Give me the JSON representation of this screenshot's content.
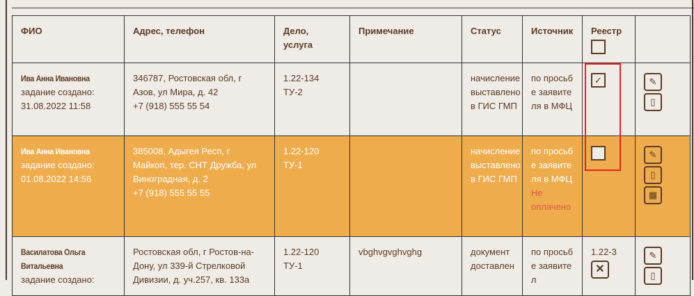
{
  "headers": {
    "fio": "ФИО",
    "address": "Адрес, телефон",
    "case": "Дело, услуга",
    "note": "Примечание",
    "status": "Статус",
    "source": "Источник",
    "registry": "Реестр"
  },
  "rows": [
    {
      "name": "Ива Анна Ивановна",
      "created": "задание создано: 31.08.2022 11:58",
      "address": "346787, Ростовская обл, г Азов, ул Мира, д. 42",
      "phone": "+7 (918) 555 55 54",
      "case": "1.22-134",
      "service": "ТУ-2",
      "note": "",
      "status": "начисление выставлено в ГИС ГМП",
      "source": "по просьбе заявителя в МФЦ",
      "registry_checked": true
    },
    {
      "name": "Ива Анна Ивановна",
      "created": "задание создано: 01.08.2022 14:56",
      "address": "385008, Адыгея Респ, г Майкоп, тер. СНТ Дружба, ул Виноградная, д. 2",
      "phone": "+7 (918) 555 55 55",
      "case": "1.22-120",
      "service": "ТУ-1",
      "note": "",
      "status": "начисление выставлено в ГИС ГМП",
      "source": "по просьбе заявителя в МФЦ",
      "source_warning": "Не оплачено",
      "registry_checked": false
    },
    {
      "name": "Василатова Ольга Витальевна",
      "created": "задание создано:",
      "address": "Ростовская обл, г Ростов-на-Дону, ул 339-й Стрелковой Дивизии, д. уч.257, кв. 133а",
      "phone": "",
      "case": "1.22-120",
      "service": "ТУ-1",
      "note": "vbghvgvghvghg",
      "status": "документ доставлен",
      "source": "по просьбе заявител",
      "registry_ref": "1.22-3"
    }
  ],
  "colors": {
    "highlight_row": "#eeac4c",
    "warning": "#e0584a",
    "selection_box": "#e8231e"
  }
}
